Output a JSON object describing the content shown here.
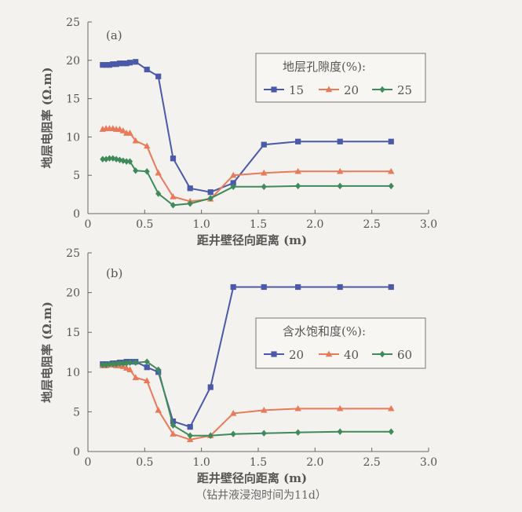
{
  "caption": "（钻井液浸泡时间为11d）",
  "colors": {
    "s1": "#4a5aa8",
    "s2": "#e87a5a",
    "s3": "#3f8a5a",
    "axis": "#666666"
  },
  "chart_data": [
    {
      "type": "line",
      "panel_label": "(a)",
      "xlabel": "距井壁径向距离 (m)",
      "ylabel": "地层电阻率 (Ω.m)",
      "xlim": [
        0,
        3.0
      ],
      "ylim": [
        0,
        25
      ],
      "xticks": [
        "0",
        "0.5",
        "1.0",
        "1.5",
        "2.0",
        "2.5",
        "3.0"
      ],
      "yticks": [
        "0",
        "5",
        "10",
        "15",
        "20",
        "25"
      ],
      "grid": false,
      "legend": {
        "title": "地层孔隙度(%):",
        "placement": "top-right"
      },
      "series": [
        {
          "name": "15",
          "marker": "square",
          "x": [
            0.13,
            0.16,
            0.19,
            0.22,
            0.25,
            0.28,
            0.31,
            0.34,
            0.37,
            0.42,
            0.52,
            0.62,
            0.75,
            0.9,
            1.08,
            1.28,
            1.55,
            1.85,
            2.22,
            2.67
          ],
          "y": [
            19.4,
            19.4,
            19.4,
            19.5,
            19.5,
            19.6,
            19.6,
            19.6,
            19.7,
            19.8,
            18.8,
            17.9,
            7.2,
            3.3,
            2.8,
            4.0,
            9.0,
            9.4,
            9.4,
            9.4
          ]
        },
        {
          "name": "20",
          "marker": "triangle",
          "x": [
            0.13,
            0.16,
            0.19,
            0.22,
            0.25,
            0.28,
            0.31,
            0.34,
            0.37,
            0.42,
            0.52,
            0.62,
            0.75,
            0.9,
            1.08,
            1.28,
            1.55,
            1.85,
            2.22,
            2.67
          ],
          "y": [
            11.0,
            11.1,
            11.1,
            11.1,
            11.0,
            11.0,
            10.8,
            10.5,
            10.5,
            9.5,
            8.8,
            5.3,
            2.2,
            1.6,
            1.9,
            5.0,
            5.3,
            5.5,
            5.5,
            5.5
          ]
        },
        {
          "name": "25",
          "marker": "diamond",
          "x": [
            0.13,
            0.16,
            0.19,
            0.22,
            0.25,
            0.28,
            0.31,
            0.34,
            0.37,
            0.42,
            0.52,
            0.62,
            0.75,
            0.9,
            1.08,
            1.28,
            1.55,
            1.85,
            2.22,
            2.67
          ],
          "y": [
            7.1,
            7.1,
            7.2,
            7.2,
            7.1,
            7.0,
            6.9,
            6.8,
            6.8,
            5.6,
            5.5,
            2.6,
            1.1,
            1.3,
            2.0,
            3.5,
            3.5,
            3.6,
            3.6,
            3.6
          ]
        }
      ]
    },
    {
      "type": "line",
      "panel_label": "(b)",
      "xlabel": "距井壁径向距离 (m)",
      "ylabel": "地层电阻率 (Ω.m)",
      "xlim": [
        0,
        3.0
      ],
      "ylim": [
        0,
        25
      ],
      "xticks": [
        "0",
        "0.5",
        "1.0",
        "1.5",
        "2.0",
        "2.5",
        "3.0"
      ],
      "yticks": [
        "0",
        "5",
        "10",
        "15",
        "20",
        "25"
      ],
      "grid": false,
      "legend": {
        "title": "含水饱和度(%):",
        "placement": "center-right"
      },
      "series": [
        {
          "name": "20",
          "marker": "square",
          "x": [
            0.13,
            0.16,
            0.19,
            0.22,
            0.25,
            0.28,
            0.31,
            0.34,
            0.37,
            0.42,
            0.52,
            0.62,
            0.75,
            0.9,
            1.08,
            1.28,
            1.55,
            1.85,
            2.22,
            2.67
          ],
          "y": [
            11.0,
            11.0,
            11.0,
            11.1,
            11.1,
            11.2,
            11.2,
            11.3,
            11.3,
            11.3,
            10.6,
            10.0,
            3.8,
            3.1,
            8.1,
            20.7,
            20.7,
            20.7,
            20.7,
            20.7
          ]
        },
        {
          "name": "40",
          "marker": "triangle",
          "x": [
            0.13,
            0.16,
            0.19,
            0.22,
            0.25,
            0.28,
            0.31,
            0.34,
            0.37,
            0.42,
            0.52,
            0.62,
            0.75,
            0.9,
            1.08,
            1.28,
            1.55,
            1.85,
            2.22,
            2.67
          ],
          "y": [
            10.8,
            10.8,
            10.9,
            10.9,
            10.8,
            10.8,
            10.7,
            10.5,
            10.3,
            9.3,
            8.9,
            5.2,
            2.2,
            1.5,
            2.0,
            4.8,
            5.2,
            5.4,
            5.4,
            5.4
          ]
        },
        {
          "name": "60",
          "marker": "diamond",
          "x": [
            0.13,
            0.16,
            0.19,
            0.22,
            0.25,
            0.28,
            0.31,
            0.34,
            0.37,
            0.42,
            0.52,
            0.62,
            0.75,
            0.9,
            1.08,
            1.28,
            1.55,
            1.85,
            2.22,
            2.67
          ],
          "y": [
            10.9,
            10.9,
            11.0,
            11.0,
            11.0,
            11.1,
            11.1,
            11.1,
            11.2,
            11.2,
            11.3,
            10.3,
            3.3,
            2.0,
            2.0,
            2.2,
            2.3,
            2.4,
            2.5,
            2.5
          ]
        }
      ]
    }
  ]
}
